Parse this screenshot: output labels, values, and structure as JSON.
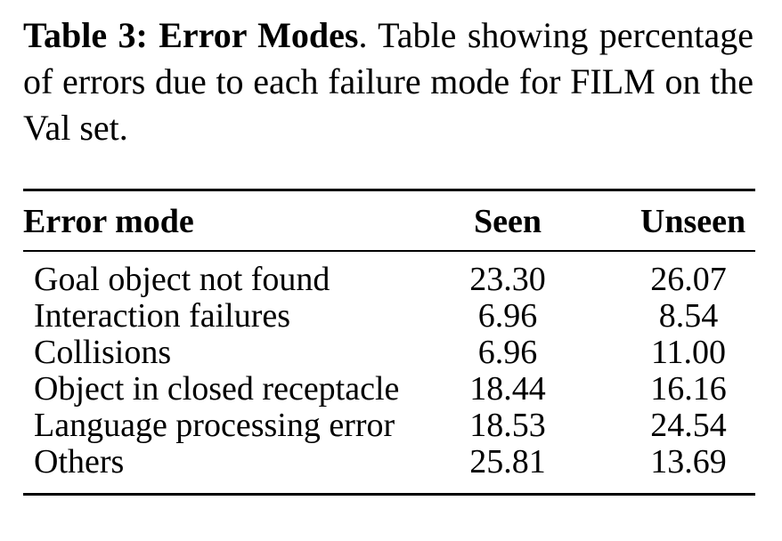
{
  "caption": {
    "label": "Table 3: Error Modes",
    "text": ". Table showing percentage of errors due to each failure mode for FILM on the Val set."
  },
  "table": {
    "columns": [
      "Error mode",
      "Seen",
      "Unseen"
    ],
    "rows": [
      {
        "mode": "Goal object not found",
        "seen": "23.30",
        "unseen": "26.07"
      },
      {
        "mode": "Interaction failures",
        "seen": "6.96",
        "unseen": "8.54"
      },
      {
        "mode": "Collisions",
        "seen": "6.96",
        "unseen": "11.00"
      },
      {
        "mode": "Object in closed receptacle",
        "seen": "18.44",
        "unseen": "16.16"
      },
      {
        "mode": "Language processing error",
        "seen": "18.53",
        "unseen": "24.54"
      },
      {
        "mode": "Others",
        "seen": "25.81",
        "unseen": "13.69"
      }
    ]
  }
}
